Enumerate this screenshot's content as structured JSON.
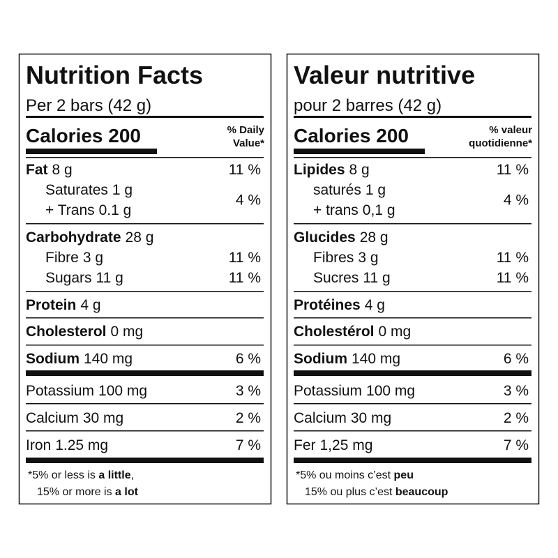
{
  "panels": [
    {
      "title": "Nutrition Facts",
      "serving": "Per 2 bars (42 g)",
      "calories": "Calories 200",
      "dv_header": [
        "% Daily",
        "Value*"
      ],
      "rows": [
        {
          "name": "Fat",
          "amount": "8 g",
          "dv": "11 %"
        },
        {
          "name": "Saturates",
          "amount": "1 g",
          "dv": "4 %"
        },
        {
          "name": "+ Trans",
          "amount": "0.1 g"
        },
        {
          "name": "Carbohydrate",
          "amount": "28 g"
        },
        {
          "name": "Fibre",
          "amount": "3 g",
          "dv": "11 %"
        },
        {
          "name": "Sugars",
          "amount": "11 g",
          "dv": "11 %"
        },
        {
          "name": "Protein",
          "amount": "4 g"
        },
        {
          "name": "Cholesterol",
          "amount": "0 mg"
        },
        {
          "name": "Sodium",
          "amount": "140 mg",
          "dv": "6 %"
        },
        {
          "name": "Potassium",
          "amount": "100 mg",
          "dv": "3 %"
        },
        {
          "name": "Calcium",
          "amount": "30 mg",
          "dv": "2 %"
        },
        {
          "name": "Iron",
          "amount": "1.25 mg",
          "dv": "7 %"
        }
      ],
      "footnote": [
        [
          "*5% or less is ",
          "a little",
          ","
        ],
        [
          "15% or more is ",
          "a lot"
        ]
      ]
    },
    {
      "title": "Valeur nutritive",
      "serving": "pour 2 barres (42 g)",
      "calories": "Calories 200",
      "dv_header": [
        "% valeur",
        "quotidienne*"
      ],
      "rows": [
        {
          "name": "Lipides",
          "amount": "8 g",
          "dv": "11 %"
        },
        {
          "name": "saturés",
          "amount": "1 g",
          "dv": "4 %"
        },
        {
          "name": "+ trans",
          "amount": "0,1 g"
        },
        {
          "name": "Glucides",
          "amount": "28 g"
        },
        {
          "name": "Fibres",
          "amount": "3 g",
          "dv": "11 %"
        },
        {
          "name": "Sucres",
          "amount": "11 g",
          "dv": "11 %"
        },
        {
          "name": "Protéines",
          "amount": "4 g"
        },
        {
          "name": "Cholestérol",
          "amount": "0 mg"
        },
        {
          "name": "Sodium",
          "amount": "140 mg",
          "dv": "6 %"
        },
        {
          "name": "Potassium",
          "amount": "100 mg",
          "dv": "3 %"
        },
        {
          "name": "Calcium",
          "amount": "30 mg",
          "dv": "2 %"
        },
        {
          "name": "Fer",
          "amount": "1,25 mg",
          "dv": "7 %"
        }
      ],
      "footnote": [
        [
          "*5% ou moins c’est ",
          "peu"
        ],
        [
          "15% ou plus c’est ",
          "beaucoup"
        ]
      ]
    }
  ]
}
